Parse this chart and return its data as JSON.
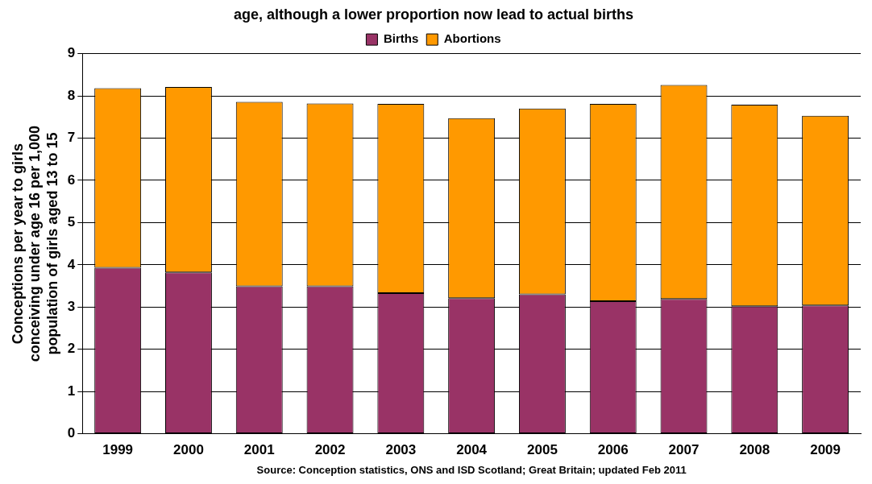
{
  "chart_data": {
    "type": "bar",
    "title": "age, although a lower proportion now lead to actual births",
    "ylabel": "Conceptions per year to girls\nconceiving under age 16 per 1,000\npopulation of girls aged 13 to 15",
    "categories": [
      "1999",
      "2000",
      "2001",
      "2002",
      "2003",
      "2004",
      "2005",
      "2006",
      "2007",
      "2008",
      "2009"
    ],
    "series": [
      {
        "name": "Births",
        "color": "#993366",
        "values": [
          3.93,
          3.82,
          3.49,
          3.49,
          3.33,
          3.21,
          3.3,
          3.14,
          3.19,
          3.02,
          3.04
        ]
      },
      {
        "name": "Abortions",
        "color": "#ff9900",
        "values": [
          4.25,
          4.39,
          4.37,
          4.33,
          4.48,
          4.26,
          4.4,
          4.67,
          5.07,
          4.77,
          4.49
        ]
      }
    ],
    "stacked": true,
    "ylim": [
      0,
      9
    ],
    "yticks": [
      0,
      1,
      2,
      3,
      4,
      5,
      6,
      7,
      8,
      9
    ],
    "grid": "y",
    "legend": "top",
    "annotations": [
      "Source: Conception statistics, ONS and ISD Scotland; Great Britain; updated Feb 2011"
    ]
  }
}
